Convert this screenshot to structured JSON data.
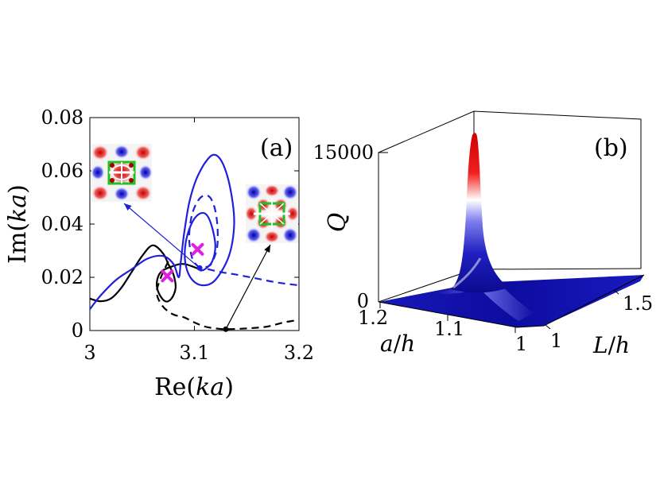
{
  "colors": {
    "blue": "#1f1fdc",
    "black": "#000000",
    "magenta": "#e020e0",
    "surface_high": "#e00000",
    "surface_mid": "#ffffff",
    "surface_low": "#1010b0"
  },
  "chart_data": [
    {
      "panel": "(a)",
      "type": "line",
      "xlabel": "Re(ka)",
      "ylabel": "Im(ka)",
      "xlim": [
        3.0,
        3.2
      ],
      "ylim": [
        0.0,
        0.08
      ],
      "xticks": [
        "3",
        "3.1",
        "3.2"
      ],
      "yticks": [
        "0",
        "0.02",
        "0.04",
        "0.06",
        "0.08"
      ],
      "grid": false,
      "series": [
        {
          "name": "black-solid",
          "style": "solid",
          "color": "black",
          "points": [
            [
              3.0,
              0.012
            ],
            [
              3.01,
              0.011
            ],
            [
              3.02,
              0.012
            ],
            [
              3.03,
              0.016
            ],
            [
              3.04,
              0.022
            ],
            [
              3.05,
              0.028
            ],
            [
              3.06,
              0.032
            ],
            [
              3.07,
              0.029
            ],
            [
              3.075,
              0.025
            ],
            [
              3.08,
              0.021
            ],
            [
              3.082,
              0.016
            ],
            [
              3.078,
              0.012
            ],
            [
              3.072,
              0.011
            ],
            [
              3.066,
              0.014
            ],
            [
              3.064,
              0.018
            ],
            [
              3.068,
              0.022
            ],
            [
              3.078,
              0.024
            ],
            [
              3.09,
              0.025
            ],
            [
              3.105,
              0.023
            ]
          ]
        },
        {
          "name": "black-dashed",
          "style": "dashed",
          "color": "black",
          "points": [
            [
              3.075,
              0.026
            ],
            [
              3.068,
              0.02
            ],
            [
              3.064,
              0.014
            ],
            [
              3.07,
              0.009
            ],
            [
              3.08,
              0.006
            ],
            [
              3.09,
              0.005
            ],
            [
              3.1,
              0.003
            ],
            [
              3.11,
              0.0015
            ],
            [
              3.12,
              0.0008
            ],
            [
              3.13,
              0.0005
            ],
            [
              3.15,
              0.0008
            ],
            [
              3.17,
              0.0015
            ],
            [
              3.185,
              0.003
            ],
            [
              3.2,
              0.004
            ]
          ]
        },
        {
          "name": "blue-solid",
          "style": "solid",
          "color": "blue",
          "points": [
            [
              3.0,
              0.008
            ],
            [
              3.01,
              0.013
            ],
            [
              3.025,
              0.019
            ],
            [
              3.04,
              0.023
            ],
            [
              3.055,
              0.027
            ],
            [
              3.07,
              0.028
            ],
            [
              3.08,
              0.025
            ],
            [
              3.085,
              0.02
            ],
            [
              3.087,
              0.026
            ],
            [
              3.09,
              0.036
            ],
            [
              3.095,
              0.048
            ],
            [
              3.102,
              0.057
            ],
            [
              3.112,
              0.064
            ],
            [
              3.12,
              0.066
            ],
            [
              3.128,
              0.062
            ],
            [
              3.135,
              0.052
            ],
            [
              3.138,
              0.04
            ],
            [
              3.133,
              0.028
            ],
            [
              3.12,
              0.019
            ],
            [
              3.108,
              0.017
            ],
            [
              3.098,
              0.019
            ],
            [
              3.092,
              0.024
            ],
            [
              3.091,
              0.031
            ],
            [
              3.095,
              0.038
            ],
            [
              3.102,
              0.043
            ],
            [
              3.11,
              0.044
            ],
            [
              3.116,
              0.04
            ],
            [
              3.12,
              0.032
            ],
            [
              3.117,
              0.026
            ],
            [
              3.11,
              0.023
            ],
            [
              3.105,
              0.0225
            ]
          ]
        },
        {
          "name": "blue-dashed",
          "style": "dashed",
          "color": "blue",
          "points": [
            [
              3.105,
              0.0235
            ],
            [
              3.098,
              0.027
            ],
            [
              3.095,
              0.035
            ],
            [
              3.098,
              0.044
            ],
            [
              3.106,
              0.05
            ],
            [
              3.115,
              0.05
            ],
            [
              3.121,
              0.043
            ],
            [
              3.122,
              0.032
            ],
            [
              3.116,
              0.025
            ],
            [
              3.11,
              0.0235
            ],
            [
              3.125,
              0.022
            ],
            [
              3.14,
              0.021
            ],
            [
              3.16,
              0.0195
            ],
            [
              3.18,
              0.018
            ],
            [
              3.2,
              0.017
            ]
          ]
        }
      ],
      "markers": [
        {
          "name": "magenta-cross-1",
          "x": 3.074,
          "y": 0.0205,
          "symbol": "x",
          "color": "magenta"
        },
        {
          "name": "magenta-cross-2",
          "x": 3.103,
          "y": 0.0305,
          "symbol": "x",
          "color": "magenta"
        },
        {
          "name": "blue-dot",
          "x": 3.105,
          "y": 0.0235,
          "symbol": "dot",
          "color": "blue"
        },
        {
          "name": "black-dot",
          "x": 3.13,
          "y": 0.0005,
          "symbol": "dot",
          "color": "black"
        }
      ],
      "arrows": [
        {
          "name": "blue-arrow",
          "from": [
            3.105,
            0.0235
          ],
          "to_inset": "left",
          "color": "blue"
        },
        {
          "name": "black-arrow",
          "from": [
            3.13,
            0.0005
          ],
          "to_inset": "right",
          "color": "black"
        }
      ],
      "insets": [
        {
          "name": "mode-field-inset-left",
          "description_key": "field-pattern"
        },
        {
          "name": "mode-field-inset-right",
          "description_key": "field-pattern"
        }
      ]
    },
    {
      "panel": "(b)",
      "type": "surface",
      "zlabel": "Q",
      "xlabel": "a/h",
      "ylabel": "L/h",
      "zticks": [
        "0",
        "15000"
      ],
      "xticks": [
        "1.2",
        "1.1",
        "1"
      ],
      "yticks": [
        "1",
        "1.5"
      ],
      "zlim": [
        0,
        15000
      ],
      "peak_value": 16500,
      "colormap": [
        "low: blue",
        "mid: white",
        "high: red"
      ]
    }
  ],
  "labels": {
    "panel_a": "(a)",
    "panel_b": "(b)",
    "a_xlabel_pre": "Re(",
    "a_xlabel_it": "ka",
    "a_xlabel_post": ")",
    "a_ylabel_pre": "Im(",
    "a_ylabel_it": "ka",
    "a_ylabel_post": ")",
    "b_z_label": "Q",
    "b_x_label_it1": "a",
    "b_x_label_slash": "/",
    "b_x_label_it2": "h",
    "b_y_label_it1": "L",
    "b_y_label_slash": "/",
    "b_y_label_it2": "h"
  }
}
